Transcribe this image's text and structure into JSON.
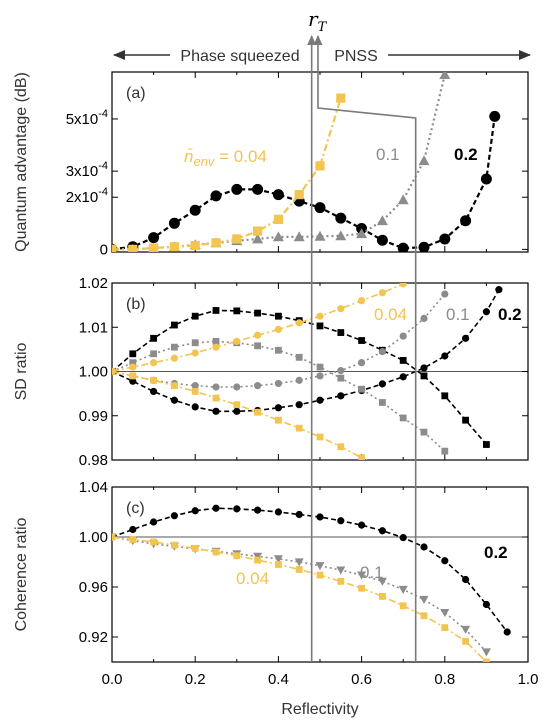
{
  "colors": {
    "black": "#000000",
    "gray": "#8c8c8c",
    "gold": "#f2c450",
    "guide": "#7a7a7a",
    "frame": "#000000"
  },
  "header": {
    "left_label": "Phase squeezed",
    "right_label": "PNSS",
    "rt_symbol": "r",
    "rt_subscript": "T"
  },
  "chart_data": [
    {
      "type": "scatter",
      "panel_label": "(a)",
      "ylabel": "Quantum advantage (dB)",
      "xlim": [
        0,
        1
      ],
      "ylim": [
        -1e-05,
        0.00068
      ],
      "yticks": [
        {
          "value": 0,
          "label": "0"
        },
        {
          "value": 0.0002,
          "label": "2x10-4"
        },
        {
          "value": 0.0003,
          "label": "3x10-4"
        },
        {
          "value": 0.0005,
          "label": "5x10-4"
        }
      ],
      "ytick_sup_parts": [
        {
          "base": "2x10",
          "exp": "-4"
        },
        {
          "base": "3x10",
          "exp": "-4"
        },
        {
          "base": "5x10",
          "exp": "-4"
        }
      ],
      "series_labels": [
        {
          "text": "n̄env = 0.04",
          "color": "gold"
        },
        {
          "text": "0.1",
          "color": "gray"
        },
        {
          "text": "0.2",
          "color": "black"
        }
      ],
      "series": [
        {
          "name": "0.2",
          "color": "black",
          "marker": "circle",
          "x": [
            0.0,
            0.05,
            0.1,
            0.15,
            0.2,
            0.25,
            0.3,
            0.35,
            0.4,
            0.45,
            0.5,
            0.55,
            0.6,
            0.65,
            0.7,
            0.75,
            0.8,
            0.85,
            0.9,
            0.92
          ],
          "y": [
            0.0,
            1e-05,
            4.5e-05,
            0.0001,
            0.00015,
            0.000205,
            0.00023,
            0.00023,
            0.00021,
            0.000185,
            0.00016,
            0.00012,
            8e-05,
            3.5e-05,
            5e-06,
            8e-06,
            4e-05,
            0.00011,
            0.00027,
            0.00051
          ]
        },
        {
          "name": "0.1",
          "color": "gray",
          "marker": "triangle",
          "x": [
            0.0,
            0.05,
            0.1,
            0.15,
            0.2,
            0.25,
            0.3,
            0.35,
            0.4,
            0.45,
            0.5,
            0.55,
            0.6,
            0.65,
            0.7,
            0.75,
            0.8
          ],
          "y": [
            0.0,
            0.0,
            5e-06,
            1e-05,
            1.8e-05,
            2.5e-05,
            3.3e-05,
            4e-05,
            4.8e-05,
            4.8e-05,
            5e-05,
            5.2e-05,
            6e-05,
            0.00011,
            0.00019,
            0.00034,
            0.00067
          ]
        },
        {
          "name": "0.04",
          "color": "gold",
          "marker": "square",
          "x": [
            0.0,
            0.05,
            0.1,
            0.15,
            0.2,
            0.25,
            0.3,
            0.35,
            0.4,
            0.45,
            0.5,
            0.55
          ],
          "y": [
            0.0,
            0.0,
            5e-06,
            1e-05,
            1.5e-05,
            2.5e-05,
            4e-05,
            7e-05,
            0.000115,
            0.00021,
            0.00032,
            0.00058
          ]
        }
      ]
    },
    {
      "type": "scatter",
      "panel_label": "(b)",
      "ylabel": "SD ratio",
      "xlim": [
        0,
        1
      ],
      "ylim": [
        0.98,
        1.02
      ],
      "yticks": [
        {
          "value": 0.98,
          "label": "0.98"
        },
        {
          "value": 0.99,
          "label": "0.99"
        },
        {
          "value": 1.0,
          "label": "1.00"
        },
        {
          "value": 1.01,
          "label": "1.01"
        },
        {
          "value": 1.02,
          "label": "1.02"
        }
      ],
      "series_labels": [
        {
          "text": "0.04",
          "color": "gold"
        },
        {
          "text": "0.1",
          "color": "gray"
        },
        {
          "text": "0.2",
          "color": "black"
        }
      ],
      "series": [
        {
          "name": "0.2",
          "color": "black",
          "marker": "square",
          "x": [
            0.0,
            0.05,
            0.1,
            0.15,
            0.2,
            0.25,
            0.3,
            0.35,
            0.4,
            0.45,
            0.5,
            0.55,
            0.6,
            0.65,
            0.7,
            0.75,
            0.8,
            0.85,
            0.9
          ],
          "y": [
            1.0,
            1.004,
            1.0075,
            1.0105,
            1.0125,
            1.0138,
            1.0137,
            1.0132,
            1.0125,
            1.0115,
            1.0103,
            1.0088,
            1.007,
            1.0048,
            1.0025,
            0.999,
            0.9945,
            0.989,
            0.9835
          ]
        },
        {
          "name": "0.2",
          "color": "black",
          "marker": "circle",
          "x": [
            0.0,
            0.05,
            0.1,
            0.15,
            0.2,
            0.25,
            0.3,
            0.35,
            0.4,
            0.45,
            0.5,
            0.55,
            0.6,
            0.65,
            0.7,
            0.75,
            0.8,
            0.85,
            0.9,
            0.93
          ],
          "y": [
            1.0,
            0.9978,
            0.9955,
            0.9935,
            0.992,
            0.991,
            0.991,
            0.9912,
            0.9918,
            0.9925,
            0.9935,
            0.9945,
            0.9957,
            0.9972,
            0.9988,
            1.0008,
            1.0035,
            1.0075,
            1.0135,
            1.0185
          ]
        },
        {
          "name": "0.1",
          "color": "gray",
          "marker": "square",
          "x": [
            0.0,
            0.05,
            0.1,
            0.15,
            0.2,
            0.25,
            0.3,
            0.35,
            0.4,
            0.45,
            0.5,
            0.55,
            0.6,
            0.65,
            0.7,
            0.75,
            0.8
          ],
          "y": [
            1.0,
            1.002,
            1.004,
            1.0055,
            1.0065,
            1.0068,
            1.0065,
            1.0058,
            1.0048,
            1.0032,
            1.001,
            0.9985,
            0.996,
            0.993,
            0.9895,
            0.9863,
            0.982
          ]
        },
        {
          "name": "0.1",
          "color": "gray",
          "marker": "circle",
          "x": [
            0.0,
            0.05,
            0.1,
            0.15,
            0.2,
            0.25,
            0.3,
            0.35,
            0.4,
            0.45,
            0.5,
            0.55,
            0.6,
            0.65,
            0.7,
            0.75,
            0.8
          ],
          "y": [
            1.0,
            0.999,
            0.998,
            0.9973,
            0.9968,
            0.9965,
            0.9965,
            0.9968,
            0.9973,
            0.998,
            0.999,
            1.0002,
            1.002,
            1.0045,
            1.008,
            1.012,
            1.0175
          ]
        },
        {
          "name": "0.04",
          "color": "gold",
          "marker": "circle",
          "x": [
            0.0,
            0.05,
            0.1,
            0.15,
            0.2,
            0.25,
            0.3,
            0.35,
            0.4,
            0.45,
            0.5,
            0.55,
            0.6,
            0.65,
            0.7
          ],
          "y": [
            1.0,
            1.001,
            1.002,
            1.003,
            1.0042,
            1.0055,
            1.0068,
            1.0082,
            1.0095,
            1.011,
            1.0125,
            1.0142,
            1.016,
            1.0178,
            1.0198
          ]
        },
        {
          "name": "0.04",
          "color": "gold",
          "marker": "square",
          "x": [
            0.0,
            0.05,
            0.1,
            0.15,
            0.2,
            0.25,
            0.3,
            0.35,
            0.4,
            0.45,
            0.5,
            0.55,
            0.6,
            0.65
          ],
          "y": [
            1.0,
            0.999,
            0.998,
            0.9968,
            0.9955,
            0.994,
            0.9925,
            0.9908,
            0.989,
            0.9872,
            0.9852,
            0.983,
            0.9805,
            0.978
          ]
        }
      ]
    },
    {
      "type": "scatter",
      "panel_label": "(c)",
      "ylabel": "Coherence ratio",
      "xlabel": "Reflectivity",
      "xlim": [
        0,
        1
      ],
      "ylim": [
        0.9,
        1.04
      ],
      "xticks": [
        {
          "value": 0.0,
          "label": "0.0"
        },
        {
          "value": 0.2,
          "label": "0.2"
        },
        {
          "value": 0.4,
          "label": "0.4"
        },
        {
          "value": 0.6,
          "label": "0.6"
        },
        {
          "value": 0.8,
          "label": "0.8"
        },
        {
          "value": 1.0,
          "label": "1.0"
        }
      ],
      "yticks": [
        {
          "value": 0.92,
          "label": "0.92"
        },
        {
          "value": 0.96,
          "label": "0.96"
        },
        {
          "value": 1.0,
          "label": "1.00"
        },
        {
          "value": 1.04,
          "label": "1.04"
        }
      ],
      "series_labels": [
        {
          "text": "0.04",
          "color": "gold"
        },
        {
          "text": "0.1",
          "color": "gray"
        },
        {
          "text": "0.2",
          "color": "black"
        }
      ],
      "series": [
        {
          "name": "0.2",
          "color": "black",
          "marker": "circle",
          "x": [
            0.0,
            0.05,
            0.1,
            0.15,
            0.2,
            0.25,
            0.3,
            0.35,
            0.4,
            0.45,
            0.5,
            0.55,
            0.6,
            0.65,
            0.7,
            0.75,
            0.8,
            0.85,
            0.9,
            0.95
          ],
          "y": [
            1.0,
            1.006,
            1.012,
            1.017,
            1.021,
            1.023,
            1.0225,
            1.0215,
            1.02,
            1.018,
            1.016,
            1.013,
            1.0095,
            1.005,
            0.9995,
            0.992,
            0.981,
            0.966,
            0.946,
            0.924
          ]
        },
        {
          "name": "0.1",
          "color": "gray",
          "marker": "triangle",
          "x": [
            0.0,
            0.05,
            0.1,
            0.15,
            0.2,
            0.25,
            0.3,
            0.35,
            0.4,
            0.45,
            0.5,
            0.55,
            0.6,
            0.65,
            0.7,
            0.75,
            0.8,
            0.85,
            0.9
          ],
          "y": [
            1.0,
            0.997,
            0.9945,
            0.9925,
            0.9905,
            0.9885,
            0.9865,
            0.9845,
            0.9825,
            0.98,
            0.977,
            0.9735,
            0.9695,
            0.9645,
            0.958,
            0.95,
            0.9395,
            0.926,
            0.908
          ]
        },
        {
          "name": "0.04",
          "color": "gold",
          "marker": "square",
          "x": [
            0.0,
            0.05,
            0.1,
            0.15,
            0.2,
            0.25,
            0.3,
            0.35,
            0.4,
            0.45,
            0.5,
            0.55,
            0.6,
            0.65,
            0.7,
            0.75,
            0.8,
            0.85,
            0.9
          ],
          "y": [
            1.0,
            0.998,
            0.996,
            0.9935,
            0.991,
            0.988,
            0.985,
            0.9815,
            0.978,
            0.974,
            0.9695,
            0.9645,
            0.959,
            0.9525,
            0.945,
            0.937,
            0.9275,
            0.9165,
            0.9
          ]
        }
      ]
    }
  ]
}
